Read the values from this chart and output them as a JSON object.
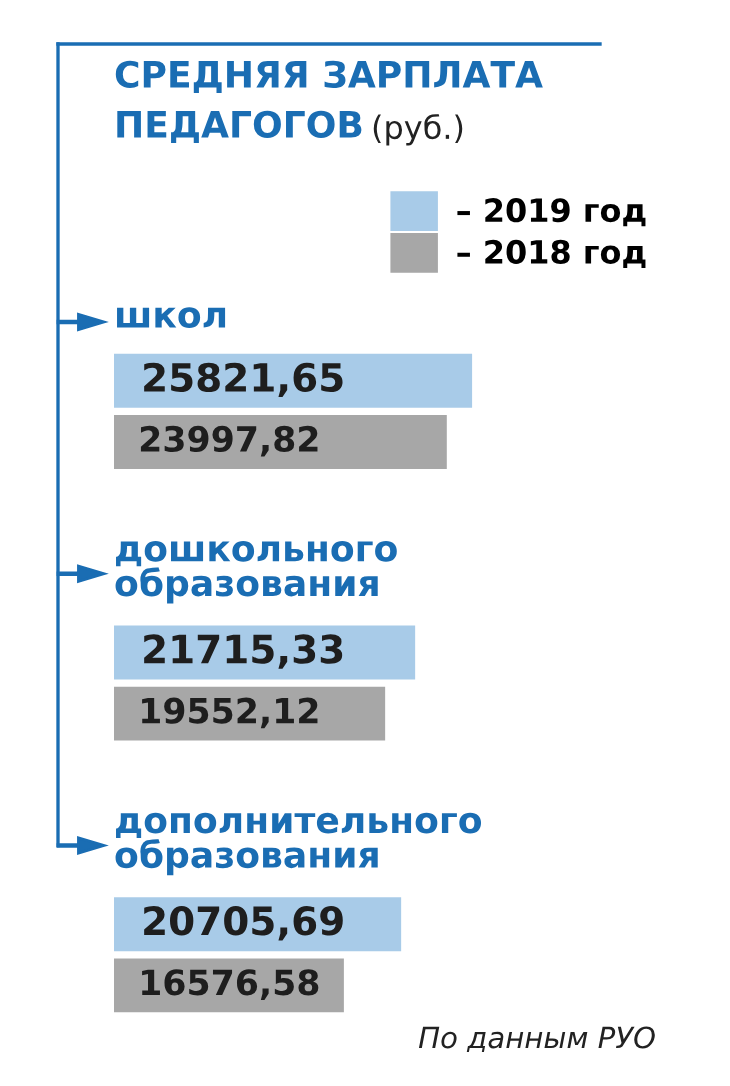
{
  "chart_data": {
    "type": "bar",
    "orientation": "horizontal",
    "title": "СРЕДНЯЯ ЗАРПЛАТА ПЕДАГОГОВ",
    "subtitle": "(руб.)",
    "categories": [
      "школ",
      "дошкольного образования",
      "дополнительного образования"
    ],
    "series": [
      {
        "name": "– 2019 год",
        "color": "#a8cbe8",
        "values": [
          25821.65,
          21715.33,
          20705.69
        ],
        "value_labels": [
          "25821,65",
          "21715,33",
          "20705,69"
        ]
      },
      {
        "name": "– 2018 год",
        "color": "#a7a7a7",
        "values": [
          23997.82,
          19552.12,
          16576.58
        ],
        "value_labels": [
          "23997,82",
          "19552,12",
          "16576,58"
        ]
      }
    ],
    "legend": "top right",
    "annotations": [
      "По данным РУО"
    ]
  }
}
